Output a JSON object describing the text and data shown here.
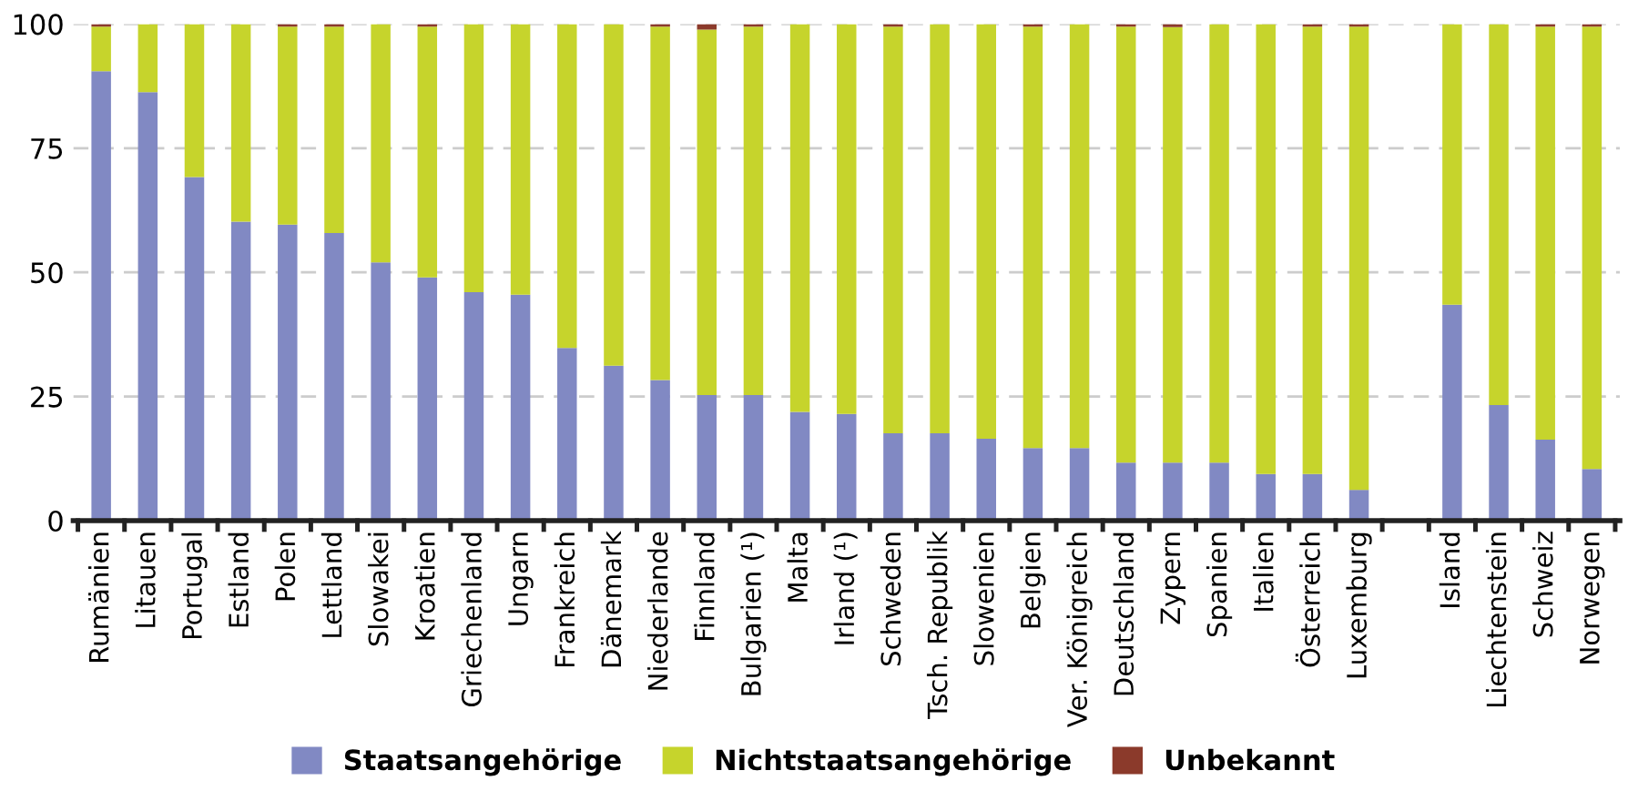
{
  "chart_data": {
    "type": "bar",
    "stacked": true,
    "categories": [
      "Rumänien",
      "Litauen",
      "Portugal",
      "Estland",
      "Polen",
      "Lettland",
      "Slowakei",
      "Kroatien",
      "Griechenland",
      "Ungarn",
      "Frankreich",
      "Dänemark",
      "Niederlande",
      "Finnland",
      "Bulgarien (¹)",
      "Malta",
      "Irland (¹)",
      "Schweden",
      "Tsch. Republik",
      "Slowenien",
      "Belgien",
      "Ver. Königreich",
      "Deutschland",
      "Zypern",
      "Spanien",
      "Italien",
      "Österreich",
      "Luxemburg",
      null,
      "Island",
      "Liechtenstein",
      "Schweiz",
      "Norwegen"
    ],
    "series": [
      {
        "name": "Staatsangehörige",
        "color": "#8189c3",
        "values": [
          90.5,
          86.3,
          69.2,
          60.2,
          59.6,
          57.9,
          52.0,
          49.0,
          46.0,
          45.5,
          34.8,
          31.2,
          28.3,
          25.3,
          25.3,
          21.9,
          21.5,
          17.6,
          17.6,
          16.5,
          14.6,
          14.6,
          11.7,
          11.7,
          11.7,
          9.4,
          9.4,
          6.2,
          null,
          43.5,
          23.3,
          16.3,
          10.4
        ]
      },
      {
        "name": "Nichtstaatsangehörige",
        "color": "#c6d42c",
        "values": [
          9.0,
          13.7,
          30.8,
          39.8,
          39.9,
          41.6,
          48.0,
          50.5,
          54.0,
          54.5,
          65.2,
          68.8,
          71.2,
          73.6,
          74.2,
          78.1,
          78.5,
          81.9,
          82.4,
          83.5,
          84.9,
          85.4,
          87.8,
          87.7,
          88.3,
          90.6,
          90.1,
          93.3,
          null,
          56.5,
          76.7,
          83.2,
          89.1
        ]
      },
      {
        "name": "Unbekannt",
        "color": "#8b3a2b",
        "values": [
          0.5,
          0,
          0,
          0,
          0.5,
          0.5,
          0,
          0.5,
          0,
          0,
          0,
          0,
          0.5,
          1.1,
          0.5,
          0,
          0,
          0.5,
          0,
          0,
          0.5,
          0,
          0.5,
          0.6,
          0,
          0,
          0.5,
          0.5,
          null,
          0,
          0,
          0.5,
          0.5
        ]
      }
    ],
    "ylim": [
      0,
      100
    ],
    "yticks": [
      0,
      25,
      50,
      75,
      100
    ],
    "grid": "y",
    "legend": "bottom"
  }
}
